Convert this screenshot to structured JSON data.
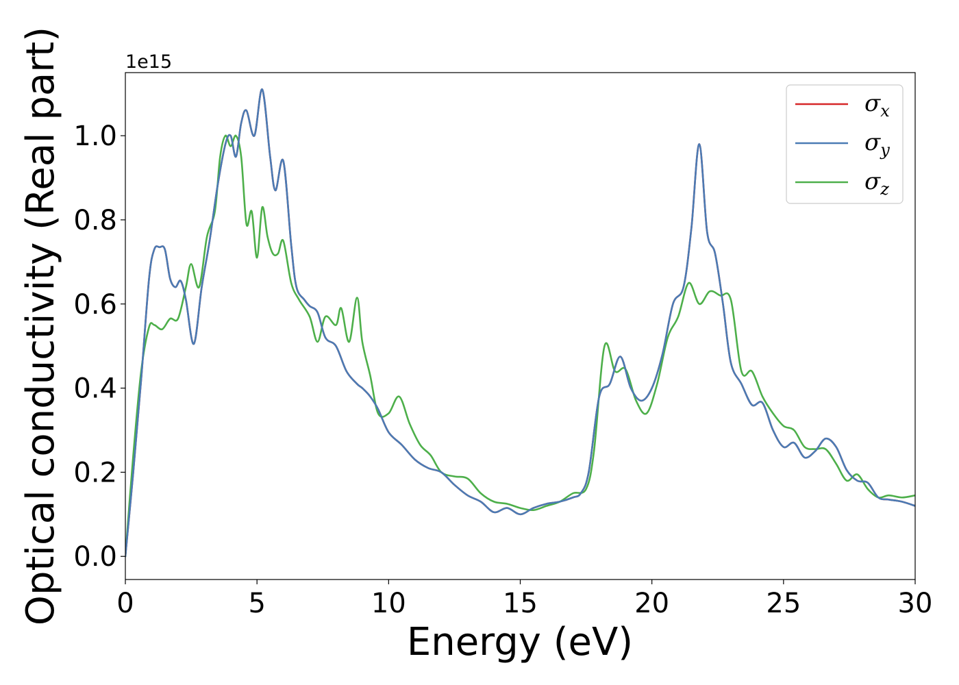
{
  "chart_data": {
    "type": "line",
    "xlabel": "Energy (eV)",
    "ylabel": "Optical conductivity (Real part)",
    "y_offset_text": "1e15",
    "xlim": [
      0,
      30
    ],
    "ylim": [
      -0.055,
      1.15
    ],
    "x_ticks": [
      0,
      5,
      10,
      15,
      20,
      25,
      30
    ],
    "x_tick_labels": [
      "0",
      "5",
      "10",
      "15",
      "20",
      "25",
      "30"
    ],
    "y_ticks": [
      0.0,
      0.2,
      0.4,
      0.6,
      0.8,
      1.0
    ],
    "y_tick_labels": [
      "0.0",
      "0.2",
      "0.4",
      "0.6",
      "0.8",
      "1.0"
    ],
    "grid": false,
    "legend_position": "top-right",
    "series": [
      {
        "name": "σx",
        "symbol": "σ",
        "subscript": "x",
        "color": "#d62728",
        "x": [
          0,
          0.3,
          0.6,
          0.9,
          1.1,
          1.3,
          1.5,
          1.7,
          1.9,
          2.1,
          2.3,
          2.6,
          2.9,
          3.2,
          3.5,
          3.8,
          4.0,
          4.2,
          4.4,
          4.6,
          4.9,
          5.2,
          5.5,
          5.7,
          6.0,
          6.3,
          6.5,
          6.8,
          7.0,
          7.3,
          7.6,
          8.0,
          8.4,
          8.8,
          9.0,
          9.3,
          9.6,
          10.0,
          10.5,
          11.0,
          11.5,
          12.0,
          12.5,
          13.0,
          13.5,
          14.0,
          14.5,
          15.0,
          15.5,
          16.0,
          16.5,
          17.0,
          17.3,
          17.6,
          18.0,
          18.4,
          18.8,
          19.2,
          19.6,
          20.0,
          20.4,
          20.8,
          21.2,
          21.5,
          21.8,
          22.1,
          22.4,
          22.7,
          23.0,
          23.4,
          23.8,
          24.2,
          24.6,
          25.0,
          25.4,
          25.8,
          26.2,
          26.6,
          27.0,
          27.4,
          27.8,
          28.2,
          28.6,
          29.0,
          29.5,
          30.0
        ],
        "y": [
          0.0,
          0.2,
          0.42,
          0.66,
          0.73,
          0.735,
          0.73,
          0.66,
          0.64,
          0.655,
          0.61,
          0.505,
          0.64,
          0.75,
          0.88,
          0.98,
          1.0,
          0.95,
          1.03,
          1.06,
          1.0,
          1.11,
          0.95,
          0.87,
          0.94,
          0.74,
          0.64,
          0.61,
          0.595,
          0.58,
          0.52,
          0.5,
          0.44,
          0.41,
          0.4,
          0.38,
          0.35,
          0.295,
          0.265,
          0.23,
          0.21,
          0.2,
          0.17,
          0.145,
          0.13,
          0.105,
          0.115,
          0.1,
          0.115,
          0.125,
          0.13,
          0.14,
          0.15,
          0.2,
          0.38,
          0.41,
          0.475,
          0.4,
          0.37,
          0.4,
          0.48,
          0.6,
          0.64,
          0.78,
          0.98,
          0.77,
          0.72,
          0.6,
          0.46,
          0.41,
          0.36,
          0.365,
          0.3,
          0.26,
          0.27,
          0.235,
          0.25,
          0.28,
          0.26,
          0.205,
          0.18,
          0.175,
          0.14,
          0.135,
          0.13,
          0.12
        ]
      },
      {
        "name": "σy",
        "symbol": "σ",
        "subscript": "y",
        "color": "#4a7bb4",
        "x": [
          0,
          0.3,
          0.6,
          0.9,
          1.1,
          1.3,
          1.5,
          1.7,
          1.9,
          2.1,
          2.3,
          2.6,
          2.9,
          3.2,
          3.5,
          3.8,
          4.0,
          4.2,
          4.4,
          4.6,
          4.9,
          5.2,
          5.5,
          5.7,
          6.0,
          6.3,
          6.5,
          6.8,
          7.0,
          7.3,
          7.6,
          8.0,
          8.4,
          8.8,
          9.0,
          9.3,
          9.6,
          10.0,
          10.5,
          11.0,
          11.5,
          12.0,
          12.5,
          13.0,
          13.5,
          14.0,
          14.5,
          15.0,
          15.5,
          16.0,
          16.5,
          17.0,
          17.3,
          17.6,
          18.0,
          18.4,
          18.8,
          19.2,
          19.6,
          20.0,
          20.4,
          20.8,
          21.2,
          21.5,
          21.8,
          22.1,
          22.4,
          22.7,
          23.0,
          23.4,
          23.8,
          24.2,
          24.6,
          25.0,
          25.4,
          25.8,
          26.2,
          26.6,
          27.0,
          27.4,
          27.8,
          28.2,
          28.6,
          29.0,
          29.5,
          30.0
        ],
        "y": [
          0.0,
          0.2,
          0.42,
          0.66,
          0.73,
          0.735,
          0.73,
          0.66,
          0.64,
          0.655,
          0.61,
          0.505,
          0.64,
          0.75,
          0.88,
          0.98,
          1.0,
          0.95,
          1.03,
          1.06,
          1.0,
          1.11,
          0.95,
          0.87,
          0.94,
          0.74,
          0.64,
          0.61,
          0.595,
          0.58,
          0.52,
          0.5,
          0.44,
          0.41,
          0.4,
          0.38,
          0.35,
          0.295,
          0.265,
          0.23,
          0.21,
          0.2,
          0.17,
          0.145,
          0.13,
          0.105,
          0.115,
          0.1,
          0.115,
          0.125,
          0.13,
          0.14,
          0.15,
          0.2,
          0.38,
          0.41,
          0.475,
          0.4,
          0.37,
          0.4,
          0.48,
          0.6,
          0.64,
          0.78,
          0.98,
          0.77,
          0.72,
          0.6,
          0.46,
          0.41,
          0.36,
          0.365,
          0.3,
          0.26,
          0.27,
          0.235,
          0.25,
          0.28,
          0.26,
          0.205,
          0.18,
          0.175,
          0.14,
          0.135,
          0.13,
          0.12
        ]
      },
      {
        "name": "σz",
        "symbol": "σ",
        "subscript": "z",
        "color": "#4daf4a",
        "x": [
          0,
          0.3,
          0.6,
          0.9,
          1.1,
          1.4,
          1.7,
          2.0,
          2.3,
          2.5,
          2.8,
          3.1,
          3.4,
          3.6,
          3.8,
          4.0,
          4.2,
          4.4,
          4.6,
          4.8,
          5.0,
          5.2,
          5.4,
          5.6,
          5.8,
          6.0,
          6.3,
          6.6,
          7.0,
          7.3,
          7.6,
          8.0,
          8.2,
          8.5,
          8.8,
          9.0,
          9.3,
          9.6,
          10.0,
          10.4,
          10.8,
          11.2,
          11.6,
          12.0,
          12.5,
          13.0,
          13.5,
          14.0,
          14.5,
          15.0,
          15.5,
          16.0,
          16.5,
          17.0,
          17.5,
          17.8,
          18.2,
          18.6,
          19.0,
          19.4,
          19.8,
          20.2,
          20.6,
          21.0,
          21.4,
          21.8,
          22.2,
          22.6,
          23.0,
          23.4,
          23.8,
          24.2,
          24.6,
          25.0,
          25.4,
          25.8,
          26.2,
          26.6,
          27.0,
          27.4,
          27.8,
          28.2,
          28.6,
          29.0,
          29.5,
          30.0
        ],
        "y": [
          0.0,
          0.24,
          0.44,
          0.545,
          0.55,
          0.54,
          0.565,
          0.565,
          0.64,
          0.695,
          0.64,
          0.76,
          0.82,
          0.95,
          1.0,
          0.975,
          1.0,
          0.95,
          0.79,
          0.82,
          0.71,
          0.83,
          0.76,
          0.72,
          0.72,
          0.75,
          0.65,
          0.61,
          0.57,
          0.51,
          0.57,
          0.55,
          0.59,
          0.51,
          0.615,
          0.51,
          0.43,
          0.34,
          0.34,
          0.38,
          0.315,
          0.265,
          0.24,
          0.2,
          0.19,
          0.185,
          0.15,
          0.13,
          0.125,
          0.115,
          0.11,
          0.12,
          0.13,
          0.15,
          0.16,
          0.25,
          0.5,
          0.44,
          0.445,
          0.37,
          0.34,
          0.41,
          0.52,
          0.57,
          0.65,
          0.6,
          0.63,
          0.62,
          0.61,
          0.44,
          0.44,
          0.38,
          0.34,
          0.31,
          0.3,
          0.26,
          0.255,
          0.255,
          0.22,
          0.18,
          0.195,
          0.16,
          0.14,
          0.145,
          0.14,
          0.145
        ]
      }
    ]
  }
}
